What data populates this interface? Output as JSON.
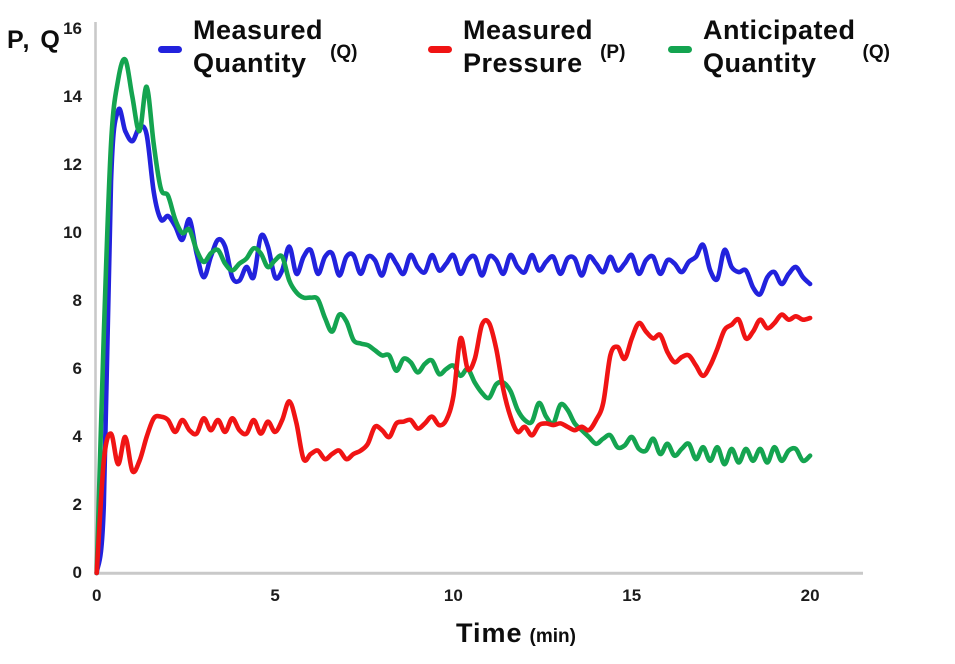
{
  "figure": {
    "y_axis_label": "P, Q",
    "x_axis_label": "Time",
    "x_axis_unit": "(min)"
  },
  "legend": {
    "items": [
      {
        "line1": "Measured",
        "line2": "Quantity",
        "unit": "(Q)",
        "color": "#2222dd"
      },
      {
        "line1": "Measured",
        "line2": "Pressure",
        "unit": "(P)",
        "color": "#f01414"
      },
      {
        "line1": "Anticipated",
        "line2": "Quantity",
        "unit": "(Q)",
        "color": "#14a450"
      }
    ]
  },
  "chart_data": {
    "type": "line",
    "title": "",
    "xlabel": "Time (min)",
    "ylabel": "P, Q",
    "xlim": [
      0,
      20
    ],
    "ylim": [
      0,
      16
    ],
    "x_ticks": [
      0,
      5,
      10,
      15,
      20
    ],
    "y_ticks": [
      0,
      2,
      4,
      6,
      8,
      10,
      12,
      14,
      16
    ],
    "grid": false,
    "legend_position": "top",
    "x_start": 0,
    "x_step": 0.2,
    "series": [
      {
        "name": "Measured Quantity (Q)",
        "color": "#2222dd",
        "values": [
          0,
          2,
          11.5,
          13.6,
          13.0,
          12.7,
          13.1,
          12.9,
          11.2,
          10.4,
          10.5,
          10.2,
          9.8,
          10.4,
          9.4,
          8.7,
          9.3,
          9.8,
          9.6,
          8.7,
          8.6,
          9.0,
          8.7,
          9.9,
          9.6,
          8.7,
          8.9,
          9.6,
          8.8,
          9.3,
          9.5,
          8.8,
          9.3,
          9.4,
          8.75,
          9.3,
          9.35,
          8.8,
          9.3,
          9.2,
          8.75,
          9.35,
          9.1,
          8.8,
          9.35,
          9.0,
          8.85,
          9.35,
          8.9,
          9.1,
          9.35,
          8.8,
          9.2,
          9.3,
          8.75,
          9.3,
          9.2,
          8.8,
          9.35,
          9.0,
          8.85,
          9.35,
          8.9,
          9.15,
          9.3,
          8.8,
          9.25,
          9.25,
          8.75,
          9.3,
          9.1,
          8.85,
          9.3,
          8.9,
          9.1,
          9.35,
          8.8,
          9.2,
          9.3,
          8.8,
          9.2,
          9.1,
          8.85,
          9.15,
          9.3,
          9.65,
          8.9,
          8.65,
          9.5,
          9.0,
          8.85,
          8.9,
          8.4,
          8.2,
          8.7,
          8.85,
          8.5,
          8.8,
          9.0,
          8.7,
          8.5
        ]
      },
      {
        "name": "Measured Pressure (P)",
        "color": "#f01414",
        "values": [
          0,
          3.3,
          4.1,
          3.2,
          4.0,
          3.0,
          3.3,
          4.0,
          4.55,
          4.6,
          4.5,
          4.15,
          4.5,
          4.2,
          4.1,
          4.55,
          4.2,
          4.5,
          4.15,
          4.55,
          4.2,
          4.1,
          4.5,
          4.1,
          4.45,
          4.15,
          4.5,
          5.05,
          4.4,
          3.35,
          3.5,
          3.6,
          3.35,
          3.5,
          3.6,
          3.35,
          3.5,
          3.6,
          3.8,
          4.3,
          4.2,
          4.0,
          4.4,
          4.45,
          4.5,
          4.25,
          4.4,
          4.6,
          4.35,
          4.5,
          5.2,
          6.9,
          6.0,
          6.3,
          7.3,
          7.35,
          6.6,
          5.4,
          4.6,
          4.15,
          4.3,
          4.05,
          4.35,
          4.4,
          4.35,
          4.4,
          4.3,
          4.2,
          4.3,
          4.2,
          4.5,
          5.0,
          6.4,
          6.65,
          6.3,
          6.9,
          7.35,
          7.1,
          6.9,
          7.0,
          6.5,
          6.2,
          6.35,
          6.4,
          6.1,
          5.8,
          6.1,
          6.6,
          7.15,
          7.3,
          7.45,
          6.9,
          7.1,
          7.45,
          7.2,
          7.35,
          7.6,
          7.45,
          7.55,
          7.45,
          7.5
        ]
      },
      {
        "name": "Anticipated Quantity (Q)",
        "color": "#14a450",
        "values": [
          0,
          7.0,
          12.6,
          14.5,
          15.1,
          14.0,
          13.0,
          14.3,
          12.6,
          11.3,
          11.1,
          10.4,
          10.0,
          10.1,
          9.5,
          9.15,
          9.4,
          9.5,
          9.1,
          8.9,
          9.1,
          9.25,
          9.55,
          9.4,
          9.0,
          9.2,
          9.3,
          8.6,
          8.25,
          8.1,
          8.1,
          8.05,
          7.5,
          7.1,
          7.6,
          7.4,
          6.85,
          6.75,
          6.7,
          6.55,
          6.4,
          6.4,
          5.95,
          6.3,
          6.2,
          5.9,
          6.15,
          6.25,
          5.85,
          6.0,
          6.1,
          5.8,
          6.0,
          5.6,
          5.3,
          5.15,
          5.55,
          5.6,
          5.35,
          4.8,
          4.5,
          4.45,
          5.0,
          4.6,
          4.4,
          4.95,
          4.8,
          4.4,
          4.2,
          4.0,
          3.8,
          3.95,
          4.05,
          3.7,
          3.75,
          4.0,
          3.65,
          3.6,
          3.95,
          3.5,
          3.8,
          3.45,
          3.65,
          3.8,
          3.35,
          3.7,
          3.3,
          3.7,
          3.2,
          3.65,
          3.25,
          3.65,
          3.3,
          3.65,
          3.25,
          3.7,
          3.3,
          3.6,
          3.65,
          3.3,
          3.45
        ]
      }
    ]
  }
}
